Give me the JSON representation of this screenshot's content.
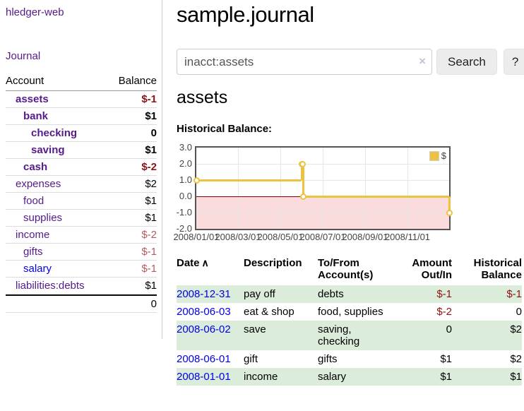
{
  "app": {
    "brand": "hledger-web",
    "nav": {
      "journal": "Journal"
    }
  },
  "sidebar": {
    "header": {
      "account": "Account",
      "balance": "Balance"
    },
    "accounts": [
      {
        "name": "assets",
        "depth": 1,
        "current": true,
        "balance": "$-1",
        "balance_style": "neg-strong",
        "link_style": "visited"
      },
      {
        "name": "bank",
        "depth": 2,
        "current": true,
        "balance": "$1",
        "balance_style": "normal",
        "link_style": "visited"
      },
      {
        "name": "checking",
        "depth": 3,
        "current": true,
        "balance": "0",
        "balance_style": "normal",
        "link_style": "visited"
      },
      {
        "name": "saving",
        "depth": 3,
        "current": true,
        "balance": "$1",
        "balance_style": "normal",
        "link_style": "visited"
      },
      {
        "name": "cash",
        "depth": 2,
        "current": true,
        "balance": "$-2",
        "balance_style": "neg-strong",
        "link_style": "visited"
      },
      {
        "name": "expenses",
        "depth": 1,
        "current": false,
        "balance": "$2",
        "balance_style": "normal",
        "link_style": "visited"
      },
      {
        "name": "food",
        "depth": 2,
        "current": false,
        "balance": "$1",
        "balance_style": "normal",
        "link_style": "visited"
      },
      {
        "name": "supplies",
        "depth": 2,
        "current": false,
        "balance": "$1",
        "balance_style": "normal",
        "link_style": "visited"
      },
      {
        "name": "income",
        "depth": 1,
        "current": false,
        "balance": "$-2",
        "balance_style": "neg-muted",
        "link_style": "visited"
      },
      {
        "name": "gifts",
        "depth": 2,
        "current": false,
        "balance": "$-1",
        "balance_style": "neg-muted",
        "link_style": "visited"
      },
      {
        "name": "salary",
        "depth": 2,
        "current": false,
        "balance": "$-1",
        "balance_style": "neg-muted",
        "link_style": "unvisited"
      },
      {
        "name": "liabilities:debts",
        "depth": 1,
        "current": false,
        "balance": "$1",
        "balance_style": "normal",
        "link_style": "visited"
      }
    ],
    "total": "0"
  },
  "main": {
    "title": "sample.journal",
    "search": {
      "value": "inacct:assets",
      "clear_icon": "×",
      "search_button": "Search",
      "help_button": "?"
    },
    "account_heading": "assets",
    "chart_label": "Historical Balance:"
  },
  "chart_data": {
    "type": "line",
    "step": true,
    "title": "Historical Balance",
    "legend": [
      {
        "label": "$",
        "color": "#edc240"
      }
    ],
    "series": [
      {
        "name": "$",
        "color": "#edc240",
        "points": [
          {
            "date": "2008-01-01",
            "value": 1
          },
          {
            "date": "2008-06-01",
            "value": 2
          },
          {
            "date": "2008-06-02",
            "value": 2
          },
          {
            "date": "2008-06-03",
            "value": 0
          },
          {
            "date": "2008-12-31",
            "value": -1
          }
        ]
      }
    ],
    "ylim": [
      -2,
      3
    ],
    "yticks": [
      "3.0",
      "2.0",
      "1.0",
      "0.0",
      "-1.0",
      "-2.0"
    ],
    "xticks": [
      "2008/01/01",
      "2008/03/01",
      "2008/05/01",
      "2008/07/01",
      "2008/09/01",
      "2008/11/01"
    ],
    "negative_region_color": "#fbdcdc",
    "zero_line_color": "#8b0000",
    "grid_color": "#e6e6e6"
  },
  "register": {
    "headers": {
      "date": "Date",
      "sort_icon": "∧",
      "description": "Description",
      "tofrom": "To/From Account(s)",
      "amount": "Amount Out/In",
      "balance": "Historical Balance"
    },
    "rows": [
      {
        "date": "2008-12-31",
        "description": "pay off",
        "tofrom_lines": [
          "debts"
        ],
        "amount": "$-1",
        "amount_negative": true,
        "balance": "$-1",
        "balance_negative": true,
        "shaded": true
      },
      {
        "date": "2008-06-03",
        "description": "eat & shop",
        "tofrom_lines": [
          "food, supplies"
        ],
        "amount": "$-2",
        "amount_negative": true,
        "balance": "0",
        "balance_negative": false,
        "shaded": false
      },
      {
        "date": "2008-06-02",
        "description": "save",
        "tofrom_lines": [
          "saving,",
          "checking"
        ],
        "amount": "0",
        "amount_negative": false,
        "balance": "$2",
        "balance_negative": false,
        "shaded": true
      },
      {
        "date": "2008-06-01",
        "description": "gift",
        "tofrom_lines": [
          "gifts"
        ],
        "amount": "$1",
        "amount_negative": false,
        "balance": "$2",
        "balance_negative": false,
        "shaded": false
      },
      {
        "date": "2008-01-01",
        "description": "income",
        "tofrom_lines": [
          "salary"
        ],
        "amount": "$1",
        "amount_negative": false,
        "balance": "$1",
        "balance_negative": false,
        "shaded": true
      }
    ]
  }
}
